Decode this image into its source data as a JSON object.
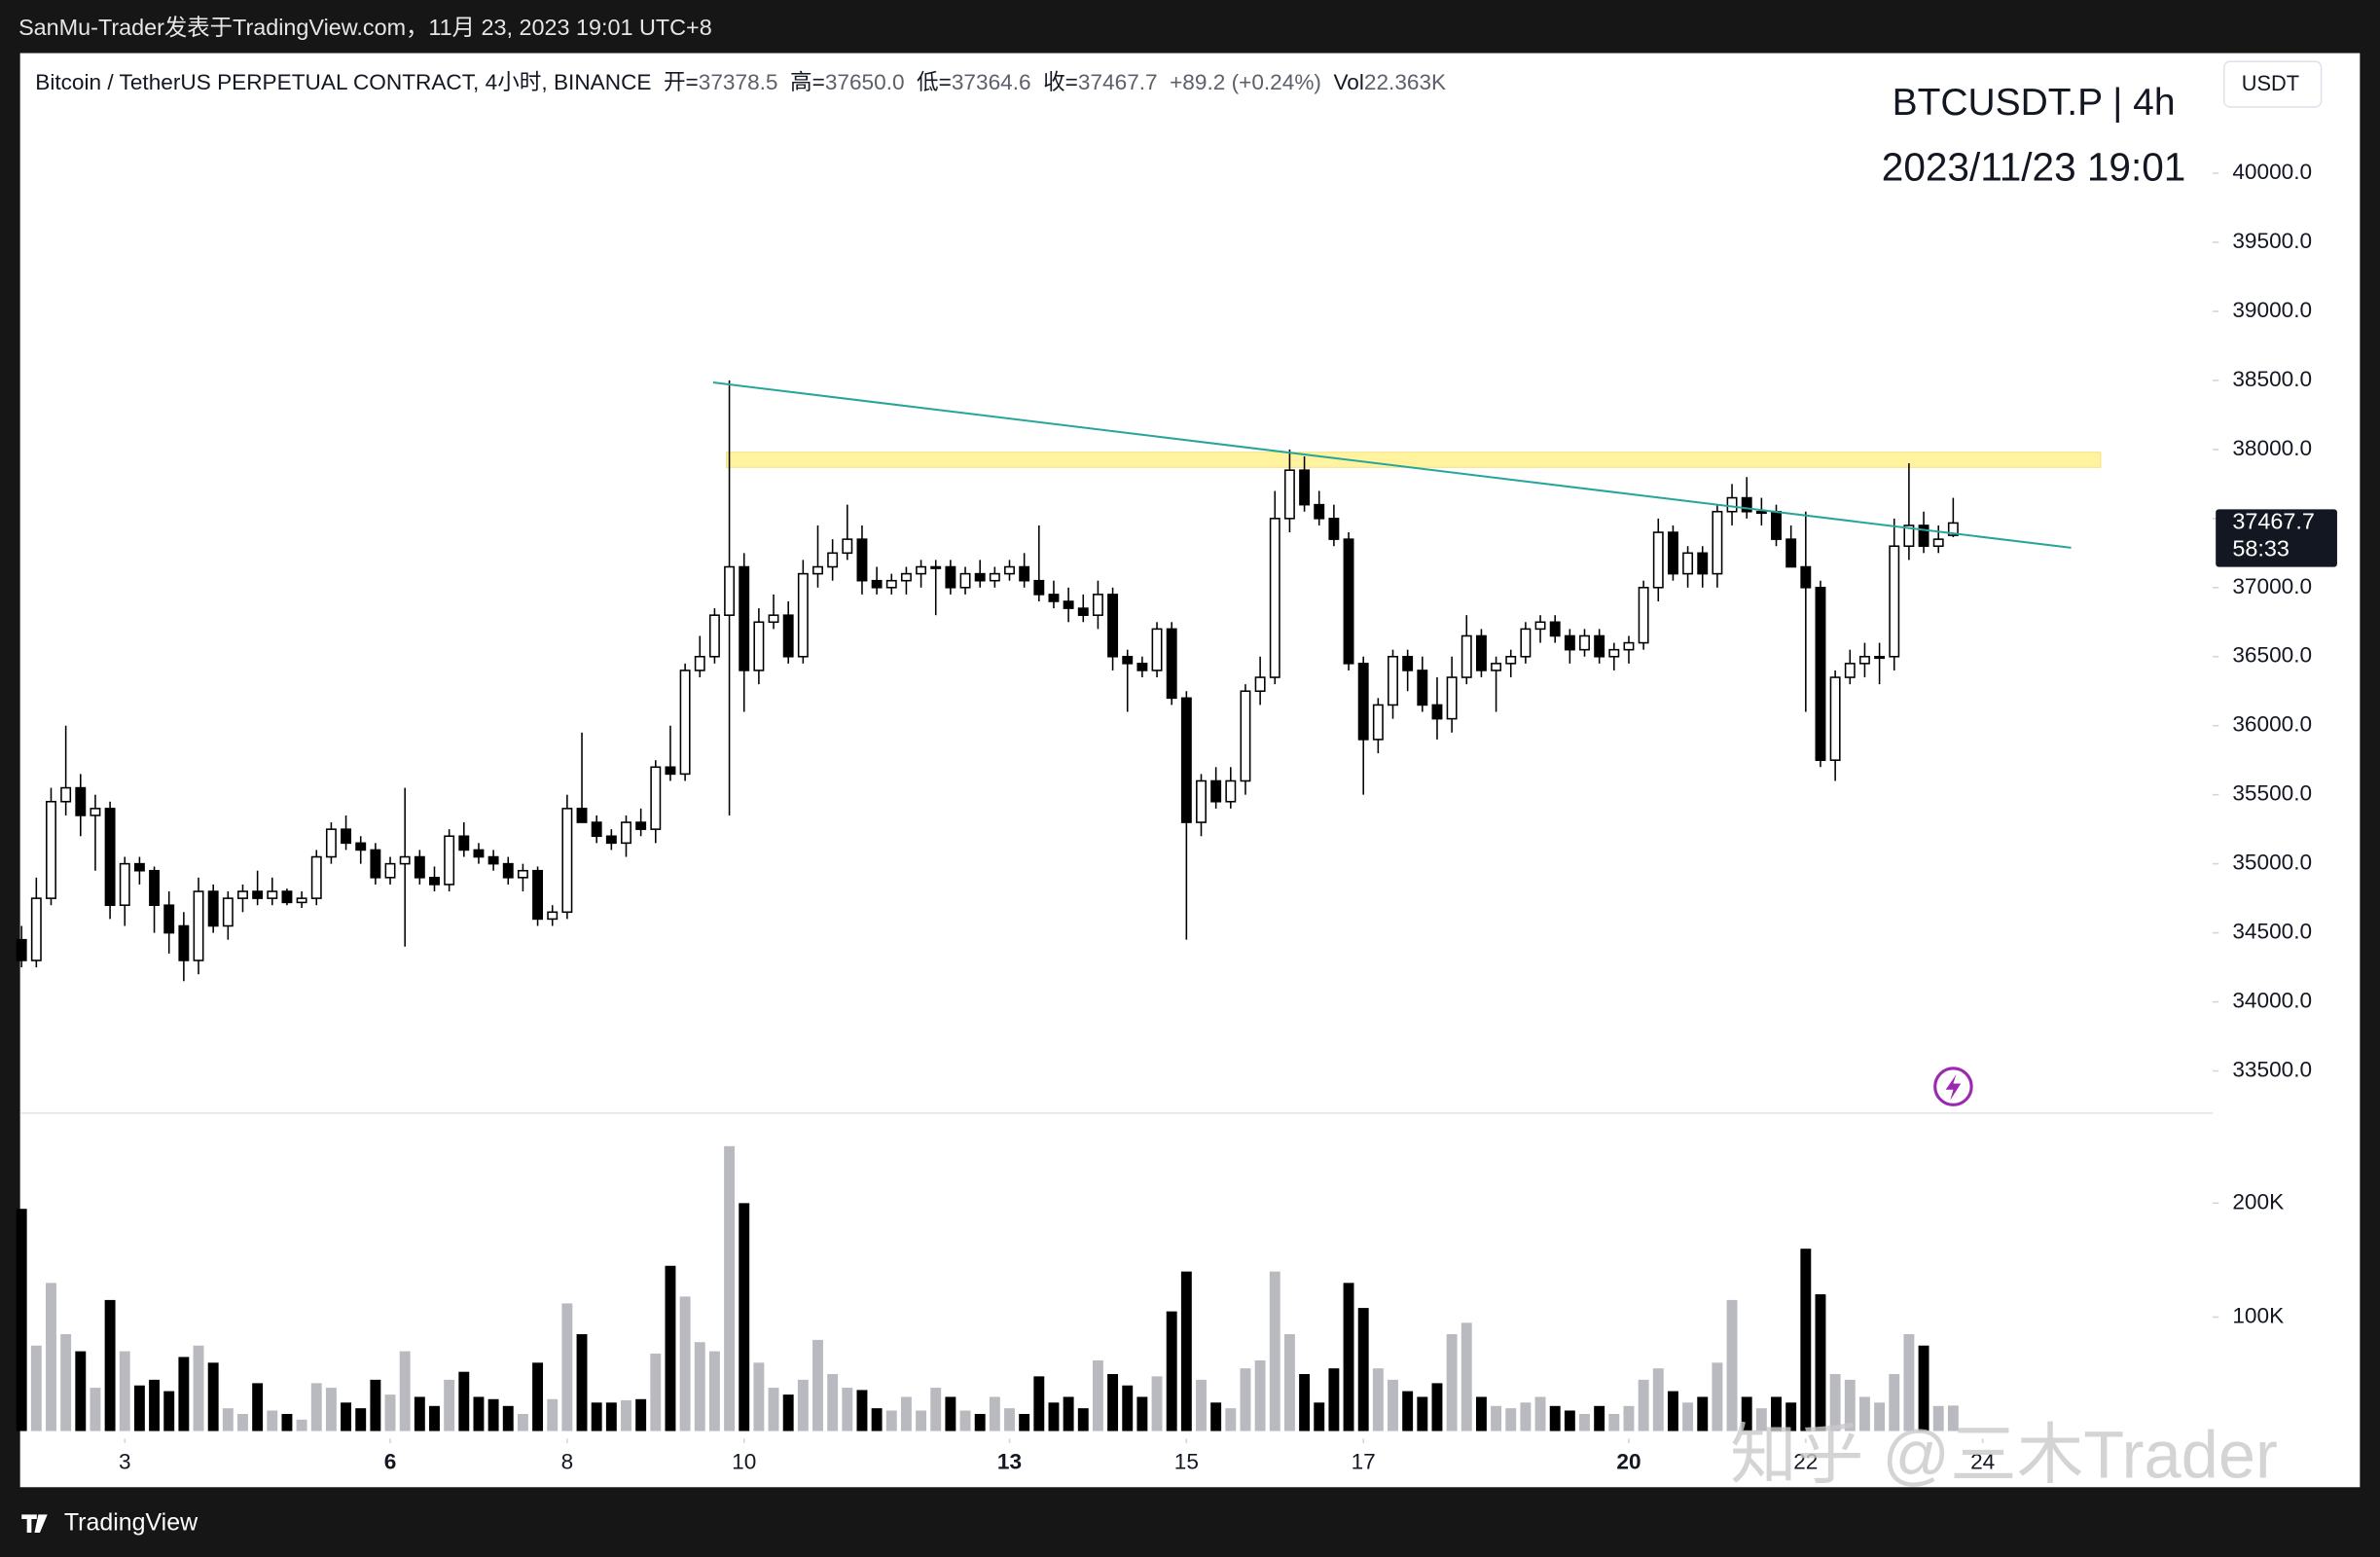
{
  "header": {
    "caption": "SanMu-Trader发表于TradingView.com，11月 23, 2023 19:01 UTC+8"
  },
  "footer": {
    "brand": "TradingView"
  },
  "watermark": "知乎 @三木Trader",
  "chart_data": {
    "type": "candlestick",
    "title": "BTCUSDT.P | 4h",
    "subtitle": "2023/11/23 19:01",
    "currency": "USDT",
    "countdown": "58:33",
    "legend": {
      "name": "Bitcoin / TetherUS PERPETUAL CONTRACT, 4小时, BINANCE",
      "items": [
        {
          "label": "开=",
          "value": "37378.5"
        },
        {
          "label": "高=",
          "value": "37650.0"
        },
        {
          "label": "低=",
          "value": "37364.6"
        },
        {
          "label": "收=",
          "value": "37467.7"
        }
      ],
      "change": "+89.2 (+0.24%)",
      "volume": {
        "label": "Vol",
        "value": "22.363K"
      }
    },
    "up_color": "#ffffff",
    "down_color": "#000000",
    "volume_up_color": "#b9bac0",
    "volume_down_color": "#000000",
    "open": [
      34450,
      34300,
      34750,
      35450,
      35550,
      35350,
      35400,
      34700,
      35000,
      34950,
      34700,
      34550,
      34300,
      34800,
      34550,
      34750,
      34800,
      34750,
      34800,
      34720,
      34750,
      35050,
      35250,
      35150,
      35100,
      34900,
      35000,
      35050,
      34900,
      34850,
      35200,
      35100,
      35050,
      35000,
      34900,
      34950,
      34600,
      34650,
      35400,
      35300,
      35200,
      35150,
      35300,
      35250,
      35700,
      35650,
      36400,
      36500,
      36800,
      37150,
      36400,
      36750,
      36800,
      36500,
      37100,
      37150,
      37250,
      37350,
      37050,
      37000,
      37050,
      37100,
      37150,
      37150,
      37000,
      37100,
      37050,
      37100,
      37150,
      37050,
      36950,
      36900,
      36850,
      36800,
      36950,
      36500,
      36450,
      36400,
      36700,
      36200,
      35300,
      35600,
      35450,
      35600,
      36250,
      36350,
      37500,
      37850,
      37600,
      37500,
      37350,
      36450,
      35900,
      36150,
      36500,
      36400,
      36150,
      36050,
      36350,
      36650,
      36400,
      36450,
      36500,
      36700,
      36750,
      36650,
      36550,
      36650,
      36500,
      36550,
      36600,
      37000,
      37400,
      37100,
      37250,
      37100,
      37550,
      37650,
      37550,
      37550,
      37350,
      37150,
      37000,
      35750,
      36350,
      36450,
      36500,
      36500,
      37300,
      37450,
      37300,
      37378.5
    ],
    "high": [
      34550,
      34900,
      35550,
      36000,
      35650,
      35500,
      35450,
      35050,
      35050,
      34980,
      34800,
      34650,
      34900,
      34850,
      34800,
      34850,
      34950,
      34900,
      34820,
      34800,
      35100,
      35300,
      35350,
      35200,
      35150,
      35050,
      35550,
      35100,
      34980,
      35250,
      35300,
      35150,
      35100,
      35050,
      35000,
      34980,
      34700,
      35500,
      35950,
      35350,
      35250,
      35350,
      35400,
      35750,
      36000,
      36450,
      36650,
      36850,
      38500,
      37250,
      36850,
      36950,
      36900,
      37200,
      37450,
      37350,
      37600,
      37450,
      37150,
      37100,
      37150,
      37200,
      37200,
      37200,
      37150,
      37200,
      37150,
      37200,
      37250,
      37450,
      37050,
      37000,
      36950,
      37050,
      37000,
      36550,
      36500,
      36750,
      36750,
      36250,
      35650,
      35700,
      35700,
      36300,
      36500,
      37700,
      38000,
      37950,
      37700,
      37600,
      37400,
      36500,
      36200,
      36550,
      36550,
      36500,
      36350,
      36500,
      36800,
      36700,
      36500,
      36550,
      36750,
      36800,
      36800,
      36700,
      36700,
      36700,
      36600,
      36650,
      37050,
      37500,
      37450,
      37300,
      37300,
      37600,
      37750,
      37800,
      37650,
      37600,
      37450,
      37550,
      37050,
      36400,
      36550,
      36600,
      36600,
      37500,
      37900,
      37550,
      37450,
      37650
    ],
    "low": [
      34250,
      34250,
      34700,
      35350,
      35200,
      34950,
      34600,
      34550,
      34850,
      34500,
      34350,
      34150,
      34200,
      34500,
      34450,
      34650,
      34700,
      34700,
      34700,
      34680,
      34700,
      35000,
      35100,
      35000,
      34850,
      34850,
      34400,
      34850,
      34800,
      34800,
      35050,
      35000,
      34950,
      34850,
      34800,
      34550,
      34550,
      34600,
      35300,
      35150,
      35100,
      35050,
      35200,
      35150,
      35600,
      35600,
      36350,
      36450,
      35350,
      36100,
      36300,
      36700,
      36450,
      36450,
      37000,
      37050,
      37200,
      36950,
      36950,
      36950,
      36950,
      37000,
      36800,
      36950,
      36950,
      37000,
      37000,
      37050,
      37000,
      36900,
      36850,
      36750,
      36750,
      36700,
      36400,
      36100,
      36350,
      36350,
      36150,
      34450,
      35200,
      35400,
      35400,
      35500,
      36150,
      36300,
      37400,
      37550,
      37450,
      37300,
      36400,
      35500,
      35800,
      36050,
      36250,
      36100,
      35900,
      35950,
      36300,
      36350,
      36100,
      36350,
      36450,
      36600,
      36600,
      36450,
      36500,
      36450,
      36400,
      36450,
      36550,
      36900,
      37050,
      37000,
      37000,
      37000,
      37450,
      37500,
      37450,
      37300,
      37150,
      36100,
      35700,
      35600,
      36300,
      36350,
      36300,
      36400,
      37200,
      37250,
      37250,
      37364.6
    ],
    "close": [
      34300,
      34750,
      35450,
      35550,
      35350,
      35400,
      34700,
      35000,
      34950,
      34700,
      34500,
      34300,
      34800,
      34550,
      34750,
      34800,
      34750,
      34800,
      34720,
      34750,
      35050,
      35250,
      35150,
      35100,
      34900,
      35000,
      35050,
      34900,
      34850,
      35200,
      35100,
      35050,
      35000,
      34900,
      34950,
      34600,
      34650,
      35400,
      35300,
      35200,
      35150,
      35300,
      35250,
      35700,
      35650,
      36400,
      36500,
      36800,
      37150,
      36400,
      36750,
      36800,
      36500,
      37100,
      37150,
      37250,
      37350,
      37050,
      37000,
      37050,
      37100,
      37150,
      37150,
      37000,
      37100,
      37050,
      37100,
      37150,
      37050,
      36950,
      36900,
      36850,
      36800,
      36950,
      36500,
      36450,
      36400,
      36700,
      36200,
      35300,
      35600,
      35450,
      35600,
      36250,
      36350,
      37500,
      37850,
      37600,
      37500,
      37350,
      36450,
      35900,
      36150,
      36500,
      36400,
      36150,
      36050,
      36350,
      36650,
      36400,
      36450,
      36500,
      36700,
      36750,
      36650,
      36550,
      36650,
      36500,
      36550,
      36600,
      37000,
      37400,
      37100,
      37250,
      37100,
      37550,
      37650,
      37550,
      37550,
      37350,
      37150,
      37000,
      35750,
      36350,
      36450,
      36500,
      36500,
      37300,
      37450,
      37300,
      37350,
      37467.7
    ],
    "volume": [
      195000,
      75000,
      130000,
      85000,
      70000,
      38000,
      115000,
      70000,
      40000,
      45000,
      35000,
      65000,
      75000,
      60000,
      20000,
      15000,
      42000,
      18000,
      15000,
      10000,
      42000,
      38000,
      25000,
      20000,
      45000,
      32000,
      70000,
      30000,
      22000,
      45000,
      52000,
      30000,
      28000,
      22000,
      15000,
      60000,
      28000,
      112000,
      85000,
      25000,
      25000,
      27000,
      28000,
      68000,
      145000,
      118000,
      78000,
      70000,
      250000,
      200000,
      60000,
      38000,
      32000,
      45000,
      80000,
      50000,
      38000,
      36000,
      20000,
      18000,
      30000,
      18000,
      38000,
      30000,
      18000,
      15000,
      30000,
      20000,
      15000,
      48000,
      25000,
      30000,
      20000,
      62000,
      50000,
      40000,
      30000,
      48000,
      105000,
      140000,
      45000,
      25000,
      20000,
      55000,
      62000,
      140000,
      85000,
      50000,
      25000,
      55000,
      130000,
      108000,
      55000,
      45000,
      35000,
      30000,
      42000,
      85000,
      95000,
      30000,
      22000,
      20000,
      25000,
      30000,
      22000,
      18000,
      15000,
      22000,
      15000,
      22000,
      45000,
      55000,
      35000,
      25000,
      30000,
      60000,
      115000,
      30000,
      20000,
      30000,
      25000,
      160000,
      120000,
      50000,
      45000,
      30000,
      25000,
      50000,
      85000,
      75000,
      22000,
      22363
    ],
    "xlim": [
      -0.1,
      148.6
    ],
    "xticks": [
      {
        "value": 7,
        "label": "3"
      },
      {
        "value": 25,
        "label": "6",
        "bold": true
      },
      {
        "value": 37,
        "label": "8"
      },
      {
        "value": 49,
        "label": "10"
      },
      {
        "value": 67,
        "label": "13",
        "bold": true
      },
      {
        "value": 79,
        "label": "15"
      },
      {
        "value": 91,
        "label": "17"
      },
      {
        "value": 109,
        "label": "20",
        "bold": true
      },
      {
        "value": 121,
        "label": "22"
      },
      {
        "value": 133,
        "label": "24"
      }
    ],
    "ylim": [
      33200,
      40870
    ],
    "yticks": [
      {
        "value": 33500,
        "label": "33500.0"
      },
      {
        "value": 34000,
        "label": "34000.0"
      },
      {
        "value": 34500,
        "label": "34500.0"
      },
      {
        "value": 35000,
        "label": "35000.0"
      },
      {
        "value": 35500,
        "label": "35500.0"
      },
      {
        "value": 36000,
        "label": "36000.0"
      },
      {
        "value": 36500,
        "label": "36500.0"
      },
      {
        "value": 37000,
        "label": "37000.0"
      },
      {
        "value": 37500,
        "label": "37500.0"
      },
      {
        "value": 38000,
        "label": "38000.0"
      },
      {
        "value": 38500,
        "label": "38500.0"
      },
      {
        "value": 39000,
        "label": "39000.0"
      },
      {
        "value": 39500,
        "label": "39500.0"
      },
      {
        "value": 40000,
        "label": "40000.0"
      }
    ],
    "volume_ylim": [
      0,
      277000
    ],
    "volume_ticks": [
      {
        "value": 100000,
        "label": "100K"
      },
      {
        "value": 200000,
        "label": "200K"
      }
    ],
    "trendline": {
      "x": [
        46.9,
        139
      ],
      "y": [
        38485,
        37288
      ],
      "color": "#26a69a"
    },
    "zone": {
      "x": [
        47.8,
        141
      ],
      "y": [
        37870,
        37980
      ],
      "color": "#fff3a0"
    }
  }
}
